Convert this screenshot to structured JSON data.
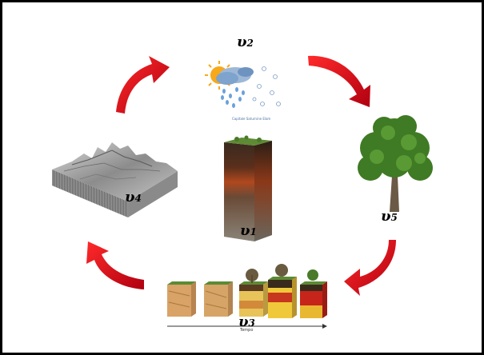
{
  "labels": {
    "v1": {
      "symbol": "υ",
      "index": "1"
    },
    "v2": {
      "symbol": "υ",
      "index": "2"
    },
    "v3": {
      "symbol": "υ",
      "index": "3"
    },
    "v4": {
      "symbol": "υ",
      "index": "4"
    },
    "v5": {
      "symbol": "υ",
      "index": "5"
    }
  },
  "climate_caption": "Capitale Saturnine Elam",
  "time_axis_label": "Tempo",
  "colors": {
    "arrow": "#e30613",
    "frame": "#000000",
    "soil_top": "#4a7a2a",
    "soil_red": "#a83a1e",
    "soil_dark": "#3a2a20"
  },
  "icons": [
    "red-cycle-arrow-icon",
    "weather-sun-rain-snow-icon",
    "tree-icon",
    "terrain-block-icon",
    "soil-column-icon",
    "soil-profile-sequence-icon"
  ]
}
